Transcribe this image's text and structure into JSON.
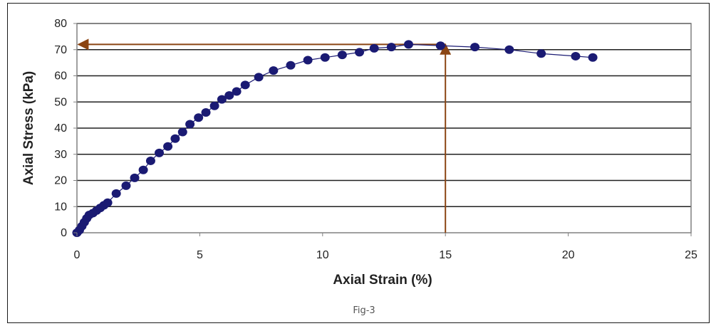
{
  "chart_data": {
    "type": "scatter",
    "xlabel": "Axial Strain (%)",
    "ylabel": "Axial Stress (kPa)",
    "xlim": [
      0,
      25
    ],
    "ylim": [
      0,
      80
    ],
    "x_ticks": [
      0,
      5,
      10,
      15,
      20,
      25
    ],
    "y_ticks": [
      0,
      10,
      20,
      30,
      40,
      50,
      60,
      70,
      80
    ],
    "grid": "horizontal",
    "series": [
      {
        "marker_color": "#1a1a73",
        "line_color": "#1a1a73",
        "x": [
          0.0,
          0.1,
          0.2,
          0.3,
          0.4,
          0.5,
          0.65,
          0.8,
          0.95,
          1.1,
          1.25,
          1.6,
          2.0,
          2.35,
          2.7,
          3.0,
          3.35,
          3.7,
          4.0,
          4.3,
          4.6,
          4.95,
          5.25,
          5.6,
          5.9,
          6.2,
          6.5,
          6.85,
          7.4,
          8.0,
          8.7,
          9.4,
          10.1,
          10.8,
          11.5,
          12.1,
          12.8,
          13.5,
          14.8,
          16.2,
          17.6,
          18.9,
          20.3,
          21.0
        ],
        "y": [
          0,
          1,
          2.5,
          4,
          5.5,
          6.8,
          7.5,
          8.5,
          9.5,
          10.5,
          11.5,
          15,
          18,
          21,
          24,
          27.5,
          30.5,
          33,
          36,
          38.5,
          41.5,
          44,
          46,
          48.5,
          51,
          52.5,
          54,
          56.5,
          59.5,
          62,
          64,
          66,
          67,
          68,
          69,
          70.5,
          71,
          72,
          71.5,
          71,
          70,
          68.5,
          67.5,
          67
        ]
      }
    ],
    "reference_lines": [
      {
        "type": "horizontal",
        "y": 72,
        "from_x": 15,
        "to_x": 0,
        "color": "#8b4513",
        "arrow": true
      },
      {
        "type": "vertical",
        "x": 15,
        "from_y": 0,
        "to_y": 72,
        "color": "#8b4513",
        "arrow": true
      }
    ]
  },
  "caption": "Fig-3",
  "colors": {
    "frame": "#1a1a1a",
    "plot_border": "#808080",
    "grid": "#202020",
    "marker": "#1a1a73",
    "annotation": "#8b4513"
  }
}
